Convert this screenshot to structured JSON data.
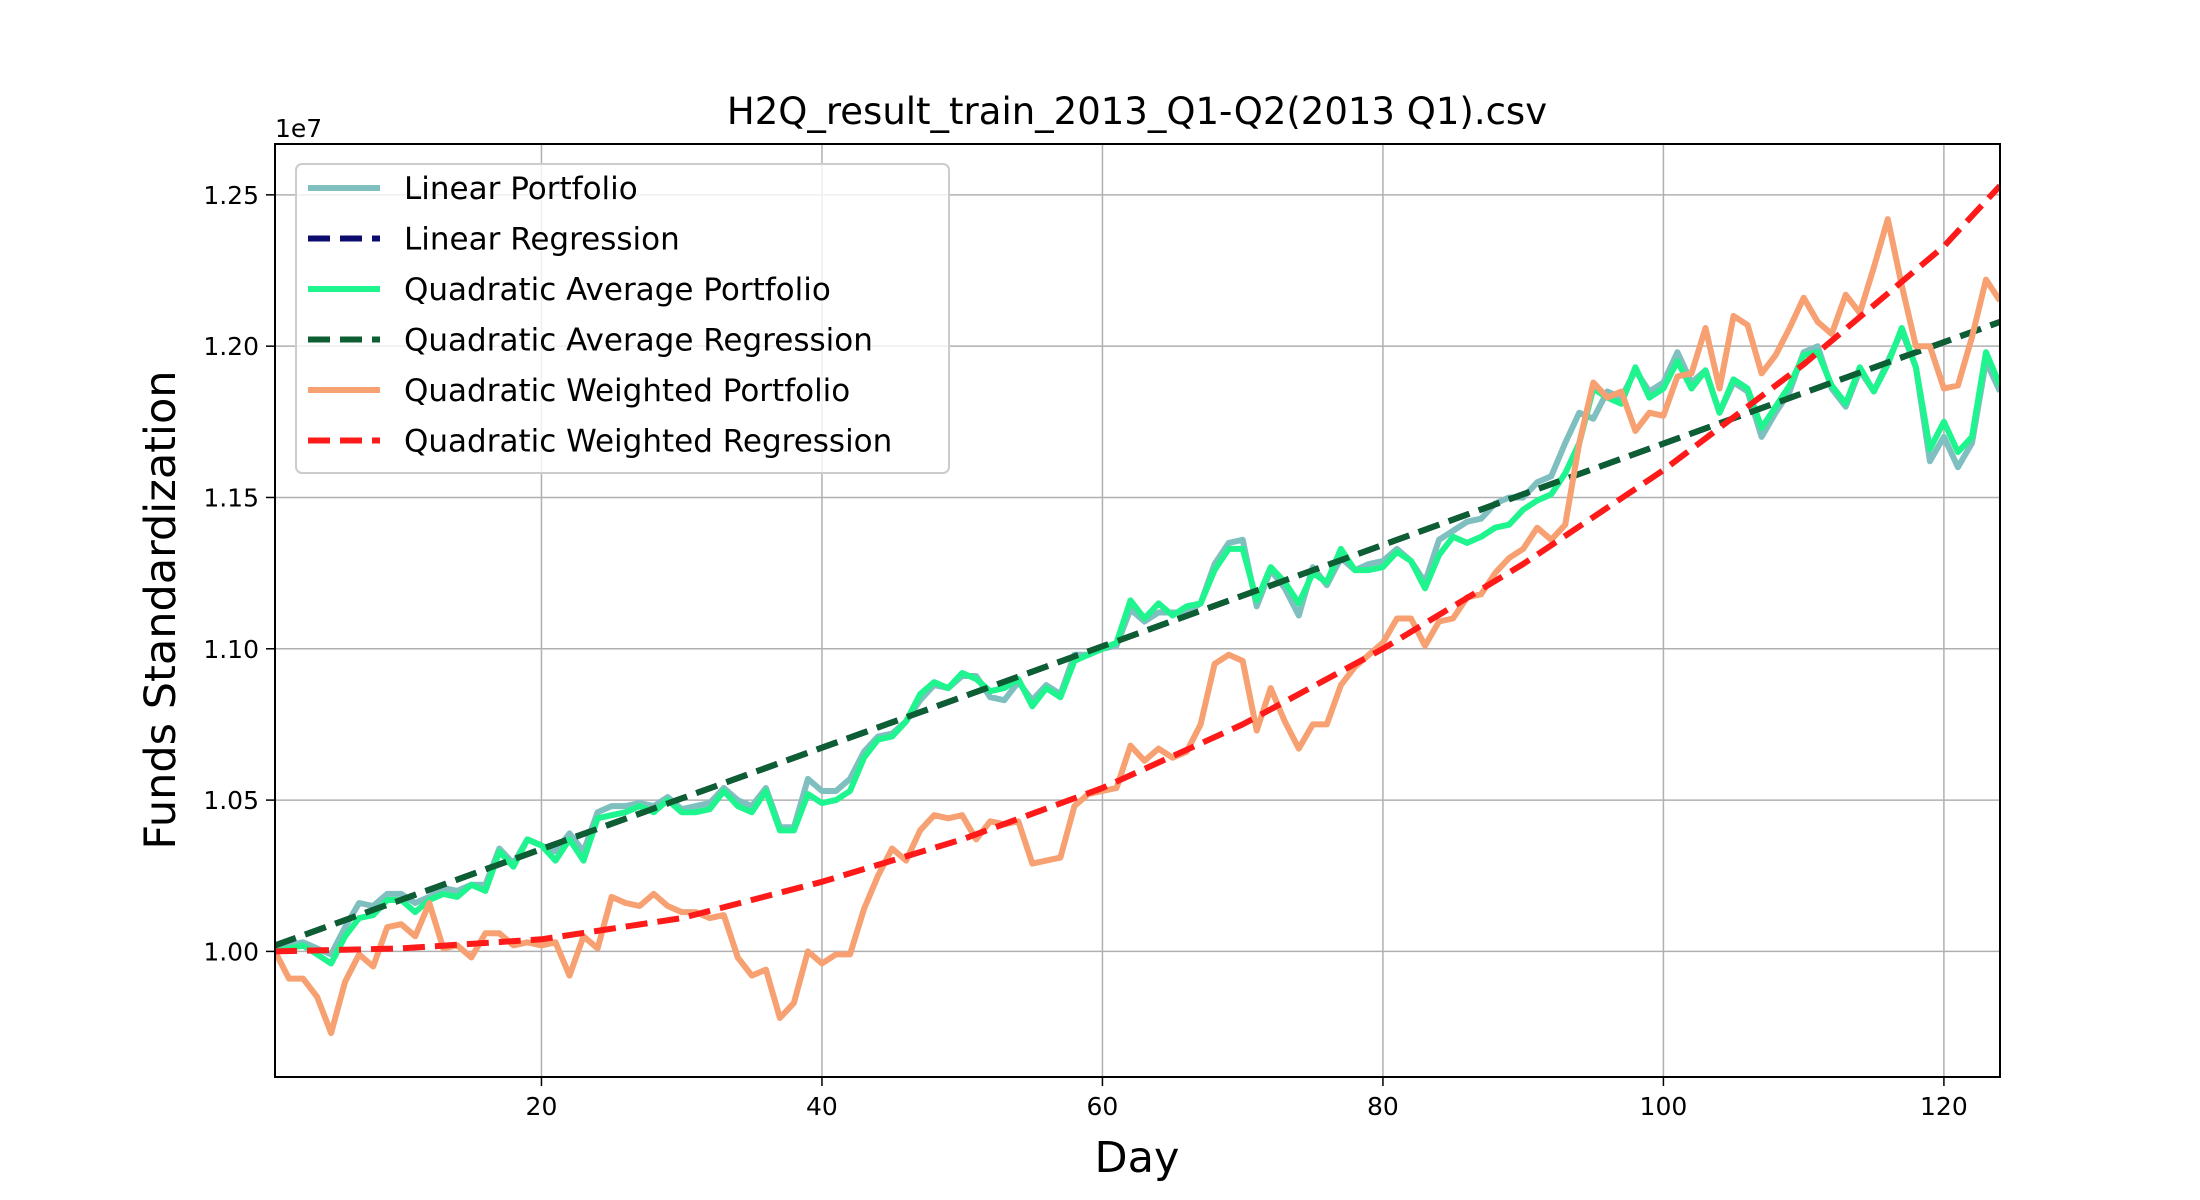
{
  "chart_data": {
    "type": "line",
    "title": "H2Q_result_train_2013_Q1-Q2(2013 Q1).csv",
    "xlabel": "Day",
    "ylabel": "Funds Standardization",
    "y_offset_label": "1e7",
    "xlim": [
      1,
      124
    ],
    "ylim": [
      0.9585,
      1.2668
    ],
    "x_ticks": [
      20,
      40,
      60,
      80,
      100,
      120
    ],
    "x_tick_labels": [
      "20",
      "40",
      "60",
      "80",
      "100",
      "120"
    ],
    "y_ticks": [
      1.0,
      1.05,
      1.1,
      1.15,
      1.2,
      1.25
    ],
    "y_tick_labels": [
      "1.00",
      "1.05",
      "1.10",
      "1.15",
      "1.20",
      "1.25"
    ],
    "grid": true,
    "legend_position": "top-left",
    "series": [
      {
        "name": "Linear Portfolio",
        "style": "solid",
        "color": "#7fbfbf",
        "x": [
          1,
          2,
          3,
          4,
          5,
          6,
          7,
          8,
          9,
          10,
          11,
          12,
          13,
          14,
          15,
          16,
          17,
          18,
          19,
          20,
          21,
          22,
          23,
          24,
          25,
          26,
          27,
          28,
          29,
          30,
          31,
          32,
          33,
          34,
          35,
          36,
          37,
          38,
          39,
          40,
          41,
          42,
          43,
          44,
          45,
          46,
          47,
          48,
          49,
          50,
          51,
          52,
          53,
          54,
          55,
          56,
          57,
          58,
          59,
          60,
          61,
          62,
          63,
          64,
          65,
          66,
          67,
          68,
          69,
          70,
          71,
          72,
          73,
          74,
          75,
          76,
          77,
          78,
          79,
          80,
          81,
          82,
          83,
          84,
          85,
          86,
          87,
          88,
          89,
          90,
          91,
          92,
          93,
          94,
          95,
          96,
          97,
          98,
          99,
          100,
          101,
          102,
          103,
          104,
          105,
          106,
          107,
          108,
          109,
          110,
          111,
          112,
          113,
          114,
          115,
          116,
          117,
          118,
          119,
          120,
          121,
          122,
          123,
          124
        ],
        "values": [
          1.0,
          1.002,
          1.003,
          1.001,
          0.999,
          1.008,
          1.016,
          1.015,
          1.019,
          1.019,
          1.016,
          1.018,
          1.021,
          1.02,
          1.022,
          1.022,
          1.034,
          1.029,
          1.037,
          1.035,
          1.033,
          1.039,
          1.033,
          1.046,
          1.048,
          1.048,
          1.049,
          1.048,
          1.051,
          1.047,
          1.048,
          1.049,
          1.054,
          1.05,
          1.048,
          1.054,
          1.041,
          1.041,
          1.057,
          1.053,
          1.053,
          1.057,
          1.066,
          1.071,
          1.072,
          1.076,
          1.083,
          1.088,
          1.087,
          1.091,
          1.091,
          1.084,
          1.083,
          1.089,
          1.083,
          1.088,
          1.085,
          1.098,
          1.098,
          1.1,
          1.101,
          1.113,
          1.109,
          1.112,
          1.112,
          1.112,
          1.115,
          1.128,
          1.135,
          1.136,
          1.114,
          1.126,
          1.12,
          1.111,
          1.127,
          1.121,
          1.13,
          1.126,
          1.128,
          1.129,
          1.133,
          1.129,
          1.122,
          1.136,
          1.139,
          1.142,
          1.143,
          1.148,
          1.15,
          1.15,
          1.155,
          1.157,
          1.168,
          1.178,
          1.176,
          1.185,
          1.183,
          1.192,
          1.185,
          1.188,
          1.198,
          1.188,
          1.192,
          1.178,
          1.188,
          1.185,
          1.17,
          1.178,
          1.185,
          1.198,
          1.2,
          1.186,
          1.18,
          1.192,
          1.185,
          1.195,
          1.205,
          1.193,
          1.162,
          1.17,
          1.16,
          1.168,
          1.195,
          1.185
        ]
      },
      {
        "name": "Linear Regression",
        "style": "dashed",
        "color": "#0c0c6e",
        "x": [
          1,
          124
        ],
        "values": [
          1.002,
          1.208
        ]
      },
      {
        "name": "Quadratic Average Portfolio",
        "style": "solid",
        "color": "#1ef58f",
        "x": [
          1,
          2,
          3,
          4,
          5,
          6,
          7,
          8,
          9,
          10,
          11,
          12,
          13,
          14,
          15,
          16,
          17,
          18,
          19,
          20,
          21,
          22,
          23,
          24,
          25,
          26,
          27,
          28,
          29,
          30,
          31,
          32,
          33,
          34,
          35,
          36,
          37,
          38,
          39,
          40,
          41,
          42,
          43,
          44,
          45,
          46,
          47,
          48,
          49,
          50,
          51,
          52,
          53,
          54,
          55,
          56,
          57,
          58,
          59,
          60,
          61,
          62,
          63,
          64,
          65,
          66,
          67,
          68,
          69,
          70,
          71,
          72,
          73,
          74,
          75,
          76,
          77,
          78,
          79,
          80,
          81,
          82,
          83,
          84,
          85,
          86,
          87,
          88,
          89,
          90,
          91,
          92,
          93,
          94,
          95,
          96,
          97,
          98,
          99,
          100,
          101,
          102,
          103,
          104,
          105,
          106,
          107,
          108,
          109,
          110,
          111,
          112,
          113,
          114,
          115,
          116,
          117,
          118,
          119,
          120,
          121,
          122,
          123,
          124
        ],
        "values": [
          1.0,
          1.001,
          1.002,
          0.999,
          0.996,
          1.005,
          1.011,
          1.012,
          1.017,
          1.017,
          1.013,
          1.017,
          1.019,
          1.018,
          1.022,
          1.02,
          1.033,
          1.028,
          1.037,
          1.035,
          1.03,
          1.037,
          1.03,
          1.044,
          1.045,
          1.046,
          1.048,
          1.046,
          1.05,
          1.046,
          1.046,
          1.047,
          1.053,
          1.048,
          1.046,
          1.053,
          1.04,
          1.04,
          1.052,
          1.049,
          1.05,
          1.053,
          1.064,
          1.07,
          1.071,
          1.076,
          1.085,
          1.089,
          1.087,
          1.092,
          1.09,
          1.086,
          1.087,
          1.09,
          1.081,
          1.087,
          1.084,
          1.096,
          1.098,
          1.1,
          1.102,
          1.116,
          1.11,
          1.115,
          1.111,
          1.114,
          1.115,
          1.126,
          1.133,
          1.133,
          1.116,
          1.127,
          1.122,
          1.115,
          1.125,
          1.122,
          1.133,
          1.126,
          1.126,
          1.127,
          1.132,
          1.129,
          1.12,
          1.131,
          1.137,
          1.135,
          1.137,
          1.14,
          1.141,
          1.146,
          1.149,
          1.151,
          1.158,
          1.168,
          1.186,
          1.183,
          1.181,
          1.193,
          1.183,
          1.186,
          1.195,
          1.186,
          1.192,
          1.178,
          1.189,
          1.186,
          1.173,
          1.18,
          1.187,
          1.197,
          1.198,
          1.187,
          1.181,
          1.193,
          1.185,
          1.194,
          1.206,
          1.193,
          1.166,
          1.175,
          1.165,
          1.17,
          1.198,
          1.187
        ]
      },
      {
        "name": "Quadratic Average Regression",
        "style": "dashed",
        "color": "#0d5e32",
        "x": [
          1,
          124
        ],
        "values": [
          1.002,
          1.208
        ]
      },
      {
        "name": "Quadratic Weighted Portfolio",
        "style": "solid",
        "color": "#f7a072",
        "x": [
          1,
          2,
          3,
          4,
          5,
          6,
          7,
          8,
          9,
          10,
          11,
          12,
          13,
          14,
          15,
          16,
          17,
          18,
          19,
          20,
          21,
          22,
          23,
          24,
          25,
          26,
          27,
          28,
          29,
          30,
          31,
          32,
          33,
          34,
          35,
          36,
          37,
          38,
          39,
          40,
          41,
          42,
          43,
          44,
          45,
          46,
          47,
          48,
          49,
          50,
          51,
          52,
          53,
          54,
          55,
          56,
          57,
          58,
          59,
          60,
          61,
          62,
          63,
          64,
          65,
          66,
          67,
          68,
          69,
          70,
          71,
          72,
          73,
          74,
          75,
          76,
          77,
          78,
          79,
          80,
          81,
          82,
          83,
          84,
          85,
          86,
          87,
          88,
          89,
          90,
          91,
          92,
          93,
          94,
          95,
          96,
          97,
          98,
          99,
          100,
          101,
          102,
          103,
          104,
          105,
          106,
          107,
          108,
          109,
          110,
          111,
          112,
          113,
          114,
          115,
          116,
          117,
          118,
          119,
          120,
          121,
          122,
          123,
          124
        ],
        "values": [
          1.0,
          0.991,
          0.991,
          0.985,
          0.973,
          0.99,
          0.999,
          0.995,
          1.008,
          1.009,
          1.005,
          1.016,
          1.001,
          1.002,
          0.998,
          1.006,
          1.006,
          1.002,
          1.003,
          1.002,
          1.003,
          0.992,
          1.005,
          1.001,
          1.018,
          1.016,
          1.015,
          1.019,
          1.015,
          1.013,
          1.013,
          1.011,
          1.012,
          0.998,
          0.992,
          0.994,
          0.978,
          0.983,
          1.0,
          0.996,
          0.999,
          0.999,
          1.014,
          1.025,
          1.034,
          1.03,
          1.04,
          1.045,
          1.044,
          1.045,
          1.037,
          1.043,
          1.042,
          1.043,
          1.029,
          1.03,
          1.031,
          1.048,
          1.052,
          1.053,
          1.054,
          1.068,
          1.063,
          1.067,
          1.064,
          1.066,
          1.075,
          1.095,
          1.098,
          1.096,
          1.073,
          1.087,
          1.076,
          1.067,
          1.075,
          1.075,
          1.088,
          1.094,
          1.098,
          1.102,
          1.11,
          1.11,
          1.101,
          1.109,
          1.11,
          1.117,
          1.118,
          1.125,
          1.13,
          1.133,
          1.14,
          1.136,
          1.141,
          1.168,
          1.188,
          1.183,
          1.185,
          1.172,
          1.178,
          1.177,
          1.19,
          1.191,
          1.206,
          1.186,
          1.21,
          1.207,
          1.191,
          1.197,
          1.206,
          1.216,
          1.208,
          1.204,
          1.217,
          1.211,
          1.226,
          1.242,
          1.22,
          1.2,
          1.2,
          1.186,
          1.187,
          1.203,
          1.222,
          1.215
        ]
      },
      {
        "name": "Quadratic Weighted Regression",
        "style": "dashed",
        "color": "#ff1a1a",
        "x": [
          1,
          10,
          20,
          30,
          40,
          50,
          60,
          70,
          80,
          90,
          100,
          110,
          120,
          124
        ],
        "values": [
          1.0,
          1.001,
          1.004,
          1.011,
          1.023,
          1.037,
          1.054,
          1.075,
          1.1,
          1.128,
          1.159,
          1.194,
          1.233,
          1.253
        ]
      }
    ]
  }
}
